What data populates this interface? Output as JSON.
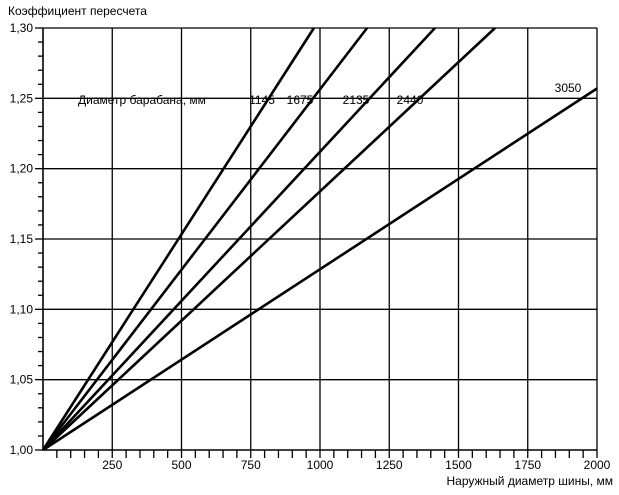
{
  "chart_data": {
    "type": "line",
    "title": "",
    "ylabel": "Коэффициент пересчета",
    "xlabel": "Наружный диаметр шины, мм",
    "legend_title": "Диаметр барабана, мм",
    "xlim": [
      0,
      2000
    ],
    "ylim": [
      1.0,
      1.3
    ],
    "x_ticks": [
      250,
      500,
      750,
      1000,
      1250,
      1500,
      1750,
      2000
    ],
    "x_tick_labels": [
      "250",
      "500",
      "750",
      "1000",
      "1250",
      "1500",
      "1750",
      "2000"
    ],
    "x_minor_step": 50,
    "y_ticks": [
      1.0,
      1.05,
      1.1,
      1.15,
      1.2,
      1.25,
      1.3
    ],
    "y_tick_labels": [
      "1,00",
      "1,05",
      "1,10",
      "1,15",
      "1,20",
      "1,25",
      "1,30"
    ],
    "y_minor_step": 0.01,
    "grid": true,
    "line_color": "#000000",
    "series": [
      {
        "name": "1145",
        "x": [
          0,
          978
        ],
        "y": [
          1.0,
          1.3
        ]
      },
      {
        "name": "1675",
        "x": [
          0,
          1170
        ],
        "y": [
          1.0,
          1.3
        ]
      },
      {
        "name": "2135",
        "x": [
          0,
          1415
        ],
        "y": [
          1.0,
          1.3
        ]
      },
      {
        "name": "2440",
        "x": [
          0,
          1632
        ],
        "y": [
          1.0,
          1.3
        ]
      },
      {
        "name": "3050",
        "x": [
          0,
          2000
        ],
        "y": [
          1.0,
          1.257
        ]
      }
    ]
  }
}
